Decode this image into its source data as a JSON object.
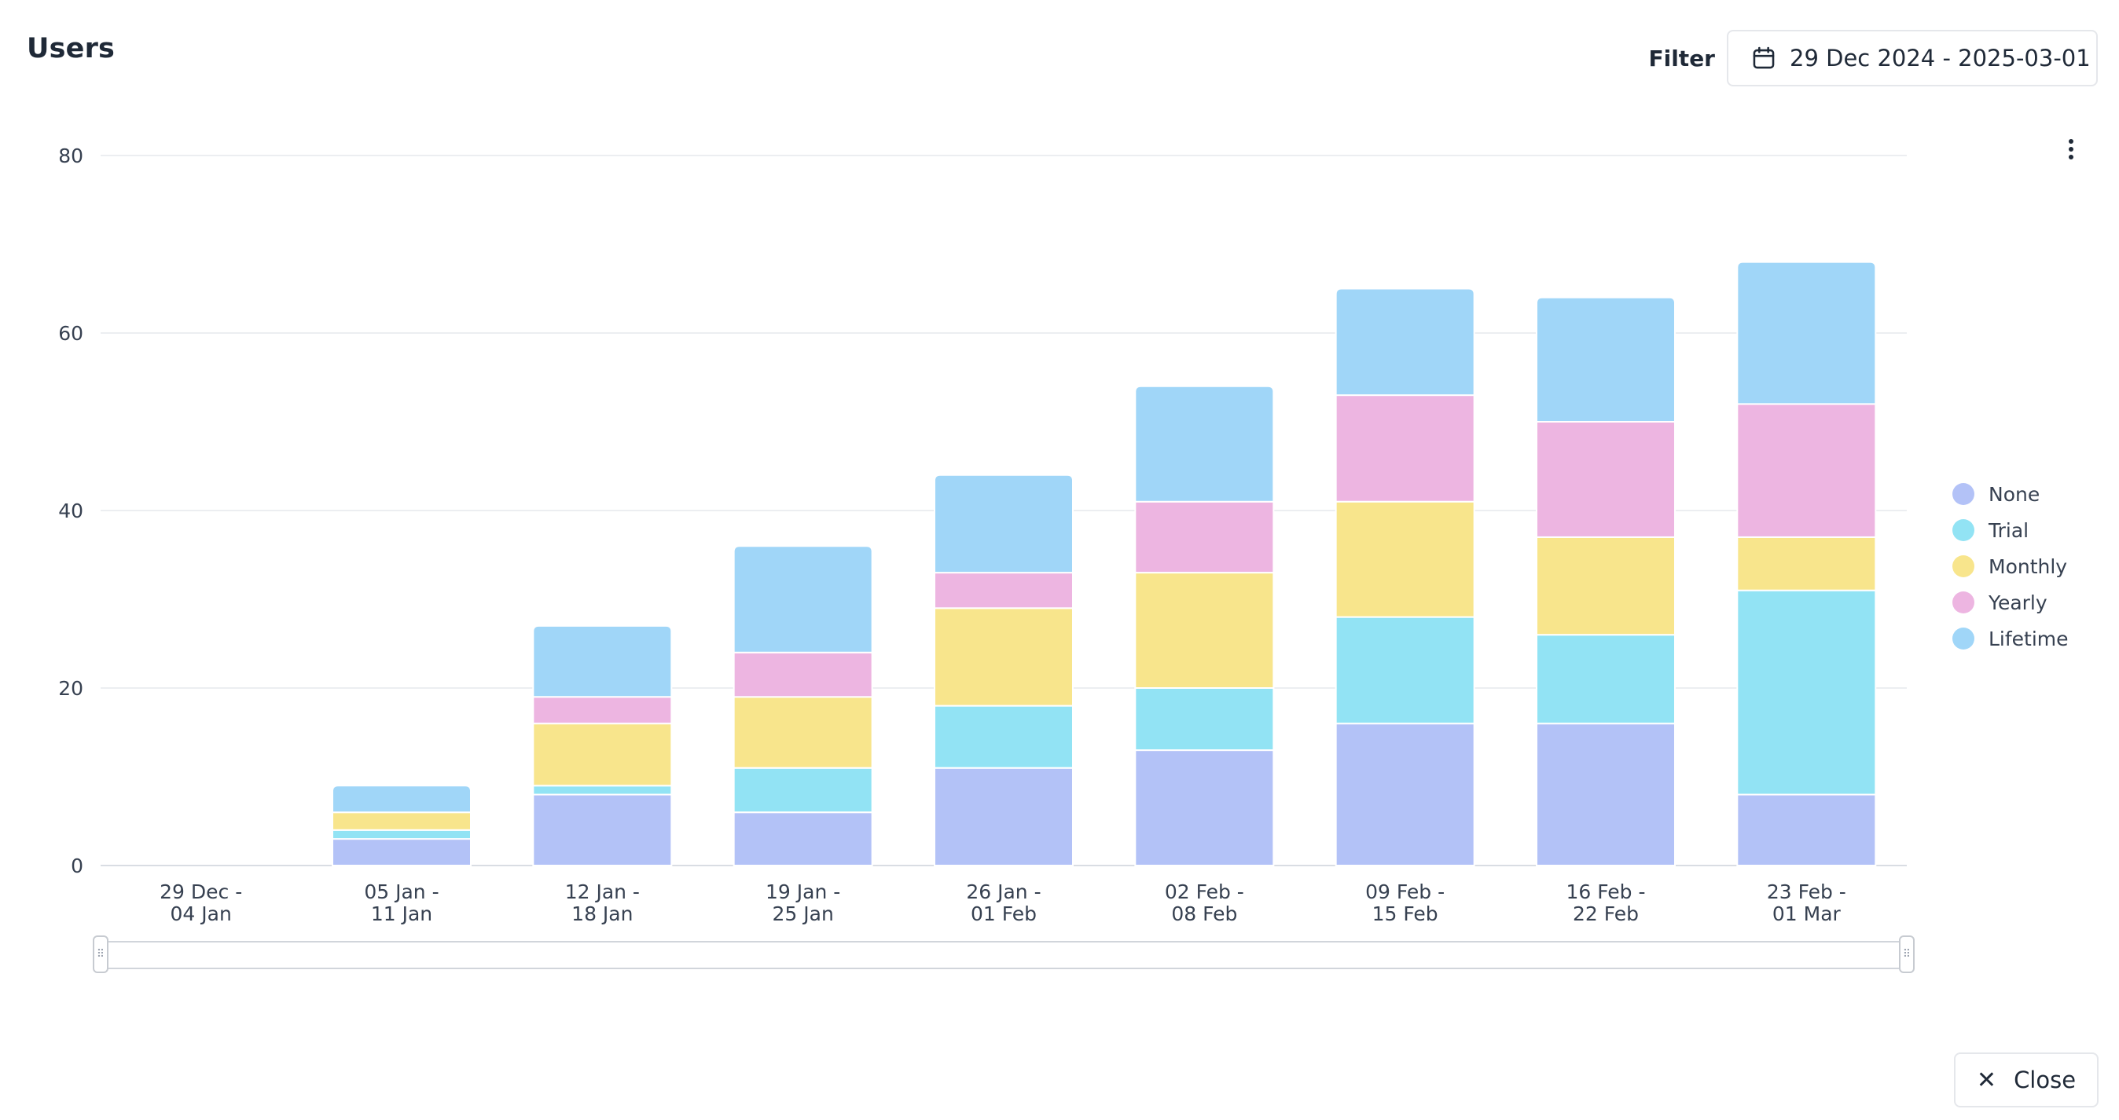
{
  "header": {
    "title": "Users",
    "filter_label": "Filter",
    "date_range": "29 Dec 2024 - 2025-03-01",
    "calendar_icon": "calendar-icon",
    "menu_icon": "more-vertical-icon"
  },
  "footer": {
    "close_label": "Close",
    "close_icon": "close-icon"
  },
  "colors": {
    "None": "#b3c2f7",
    "Trial": "#92e3f4",
    "Monthly": "#f8e58c",
    "Yearly": "#edb5e1",
    "Lifetime": "#a0d6f8"
  },
  "chart_data": {
    "type": "bar",
    "stacked": true,
    "categories": [
      [
        "29 Dec -",
        "04 Jan"
      ],
      [
        "05 Jan -",
        "11 Jan"
      ],
      [
        "12 Jan -",
        "18 Jan"
      ],
      [
        "19 Jan -",
        "25 Jan"
      ],
      [
        "26 Jan -",
        "01 Feb"
      ],
      [
        "02 Feb -",
        "08 Feb"
      ],
      [
        "09 Feb -",
        "15 Feb"
      ],
      [
        "16 Feb -",
        "22 Feb"
      ],
      [
        "23 Feb -",
        "01 Mar"
      ]
    ],
    "series": [
      {
        "name": "None",
        "values": [
          0,
          3,
          8,
          6,
          11,
          13,
          16,
          16,
          8
        ]
      },
      {
        "name": "Trial",
        "values": [
          0,
          1,
          1,
          5,
          7,
          7,
          12,
          10,
          23
        ]
      },
      {
        "name": "Monthly",
        "values": [
          0,
          2,
          7,
          8,
          11,
          13,
          13,
          11,
          6
        ]
      },
      {
        "name": "Yearly",
        "values": [
          0,
          0,
          3,
          5,
          4,
          8,
          12,
          13,
          15
        ]
      },
      {
        "name": "Lifetime",
        "values": [
          0,
          3,
          8,
          12,
          11,
          13,
          12,
          14,
          16
        ]
      }
    ],
    "yticks": [
      0,
      20,
      40,
      60,
      80
    ],
    "ylim": [
      0,
      80
    ],
    "grid": true,
    "legend": "right"
  }
}
